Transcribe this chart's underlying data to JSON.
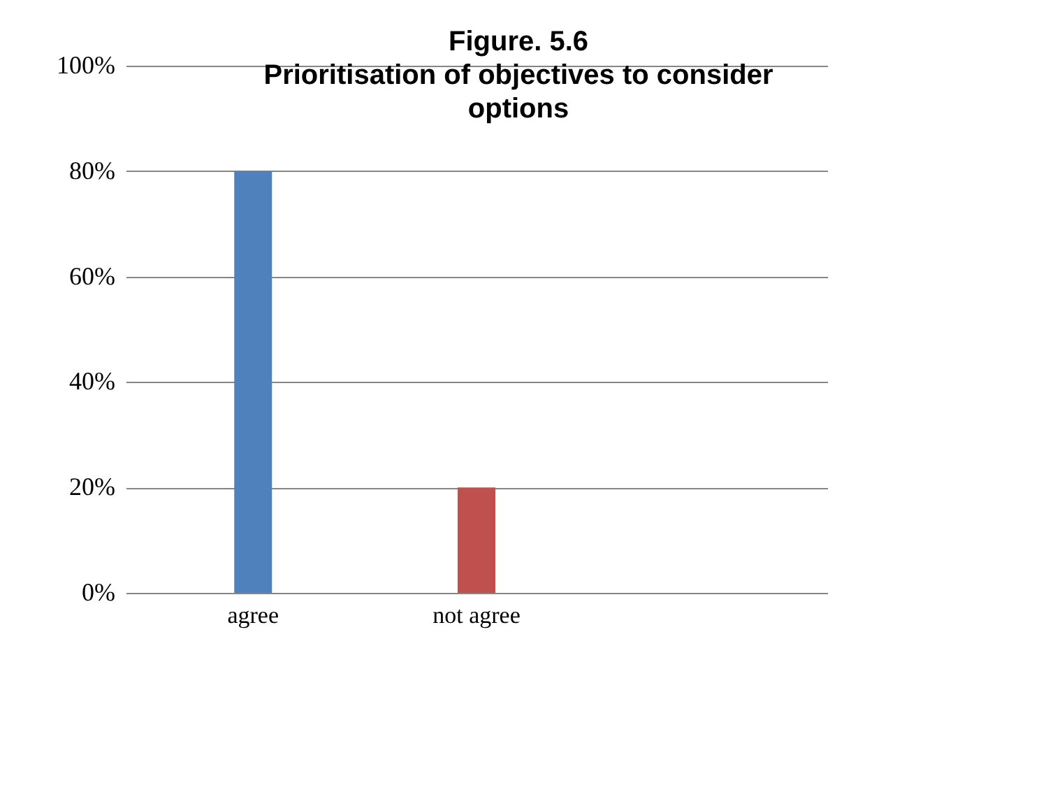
{
  "chart_data": {
    "type": "bar",
    "title": [
      "Figure. 5.6",
      "Prioritisation of objectives to consider",
      "options"
    ],
    "categories": [
      "agree",
      "not agree",
      null
    ],
    "values": [
      80,
      20,
      null
    ],
    "colors": [
      "#4f81bd",
      "#c0504d",
      "#4f81bd"
    ],
    "ylim": [
      0,
      100
    ],
    "yticks": [
      {
        "value": 0,
        "label": "0%"
      },
      {
        "value": 20,
        "label": "20%"
      },
      {
        "value": 40,
        "label": "40%"
      },
      {
        "value": 60,
        "label": "60%"
      },
      {
        "value": 80,
        "label": "80%"
      },
      {
        "value": 100,
        "label": "100%"
      }
    ],
    "grid": "y"
  }
}
